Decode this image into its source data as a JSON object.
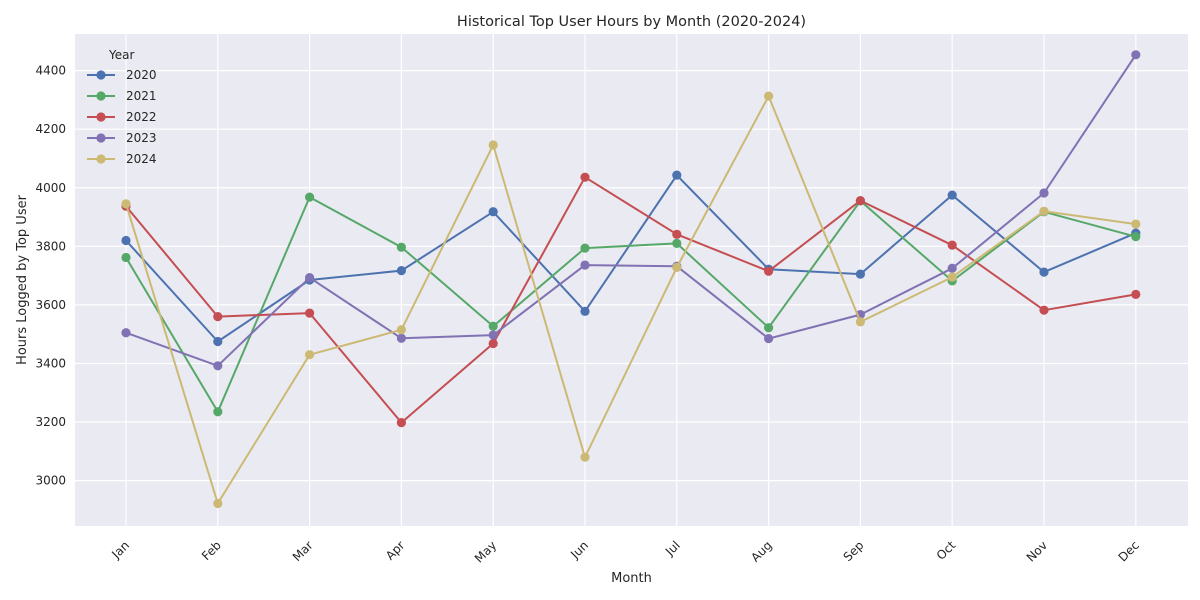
{
  "chart_data": {
    "type": "line",
    "title": "Historical Top User Hours by Month (2020-2024)",
    "xlabel": "Month",
    "ylabel": "Hours Logged by Top User",
    "categories": [
      "Jan",
      "Feb",
      "Mar",
      "Apr",
      "May",
      "Jun",
      "Jul",
      "Aug",
      "Sep",
      "Oct",
      "Nov",
      "Dec"
    ],
    "ylim": [
      2845,
      4525
    ],
    "yticks": [
      3000,
      3200,
      3400,
      3600,
      3800,
      4000,
      4200,
      4400
    ],
    "grid": true,
    "legend": {
      "title": "Year",
      "position": "top-left"
    },
    "series": [
      {
        "name": "2020",
        "color": "#4c72b0",
        "values": [
          3820,
          3475,
          3685,
          3717,
          3918,
          3578,
          4043,
          3722,
          3705,
          3975,
          3712,
          3845
        ]
      },
      {
        "name": "2021",
        "color": "#55a868",
        "values": [
          3762,
          3235,
          3968,
          3797,
          3527,
          3794,
          3810,
          3522,
          3955,
          3682,
          3918,
          3833
        ]
      },
      {
        "name": "2022",
        "color": "#c44e52",
        "values": [
          3937,
          3560,
          3572,
          3198,
          3468,
          4036,
          3841,
          3715,
          3956,
          3804,
          3582,
          3636
        ]
      },
      {
        "name": "2023",
        "color": "#8172b3",
        "values": [
          3505,
          3392,
          3693,
          3486,
          3497,
          3736,
          3732,
          3485,
          3567,
          3725,
          3982,
          4454
        ]
      },
      {
        "name": "2024",
        "color": "#ccb974",
        "values": [
          3945,
          2922,
          3430,
          3515,
          4146,
          3080,
          3728,
          4313,
          3542,
          3695,
          3920,
          3876
        ]
      }
    ]
  }
}
